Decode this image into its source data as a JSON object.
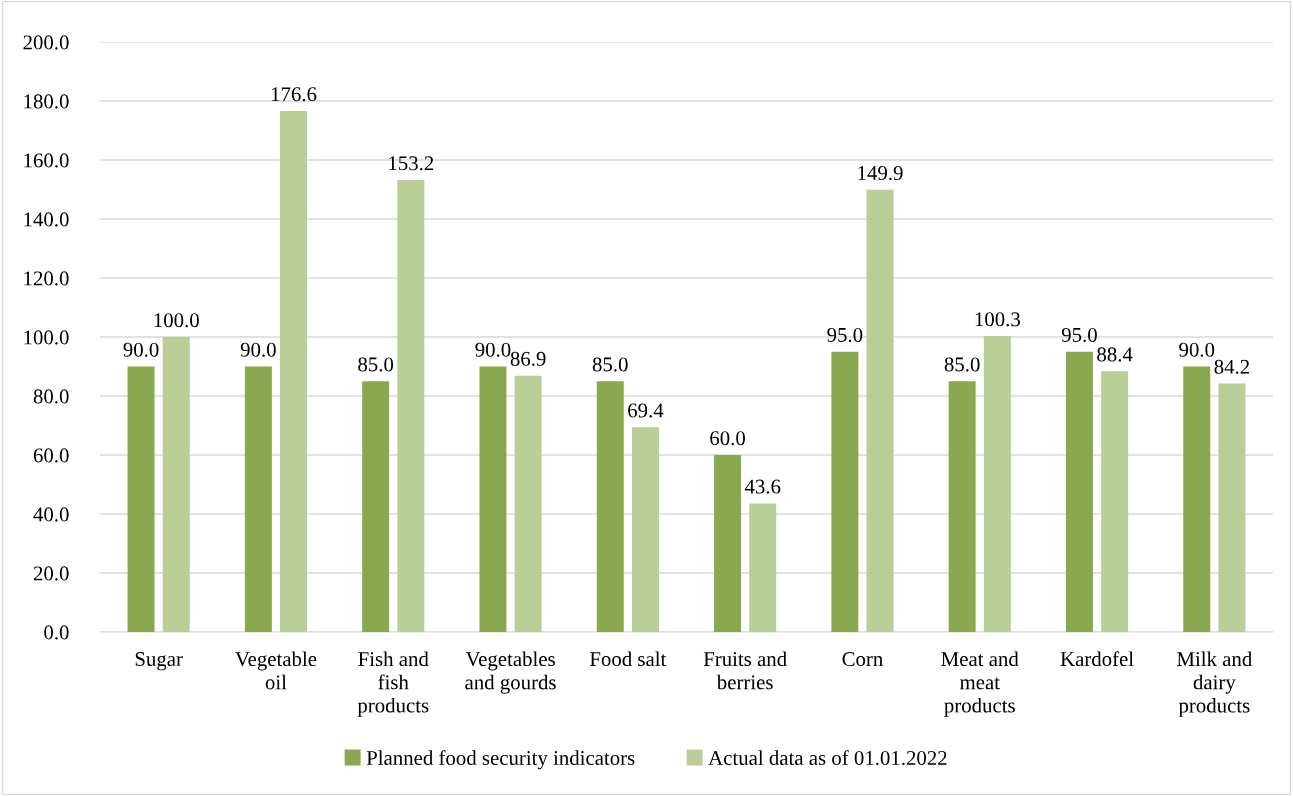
{
  "chart_data": {
    "type": "bar",
    "categories": [
      "Sugar",
      "Vegetable\noil",
      "Fish and\nfish\nproducts",
      "Vegetables\nand gourds",
      "Food salt",
      "Fruits and\nberries",
      "Corn",
      "Meat and\nmeat\nproducts",
      "Kardofel",
      "Milk and\ndairy\nproducts"
    ],
    "series": [
      {
        "name": "Planned food security indicators",
        "color": "#8aa84f",
        "values": [
          90,
          90,
          85,
          90,
          85,
          60,
          95,
          85,
          95,
          90
        ],
        "value_labels": [
          "90.0",
          "90.0",
          "85.0",
          "90.0",
          "85.0",
          "60.0",
          "95.0",
          "85.0",
          "95.0",
          "90.0"
        ]
      },
      {
        "name": "Actual data as of 01.01.2022",
        "color": "#b9cf97",
        "values": [
          100,
          176.6,
          153.2,
          86.9,
          69.4,
          43.6,
          149.9,
          100.3,
          88.4,
          84.2
        ],
        "value_labels": [
          "100.0",
          "176.6",
          "153.2",
          "86.9",
          "69.4",
          "43.6",
          "149.9",
          "100.3",
          "88.4",
          "84.2"
        ]
      }
    ],
    "ylim": [
      0,
      200
    ],
    "yticks": [
      {
        "value": 0,
        "label": "0.0"
      },
      {
        "value": 20,
        "label": "20.0"
      },
      {
        "value": 40,
        "label": "40.0"
      },
      {
        "value": 60,
        "label": "60.0"
      },
      {
        "value": 80,
        "label": "80.0"
      },
      {
        "value": 100,
        "label": "100.0"
      },
      {
        "value": 120,
        "label": "120.0"
      },
      {
        "value": 140,
        "label": "140.0"
      },
      {
        "value": 160,
        "label": "160.0"
      },
      {
        "value": 180,
        "label": "180.0"
      },
      {
        "value": 200,
        "label": "200.0"
      }
    ],
    "grid": "y",
    "legend": "bottom"
  }
}
